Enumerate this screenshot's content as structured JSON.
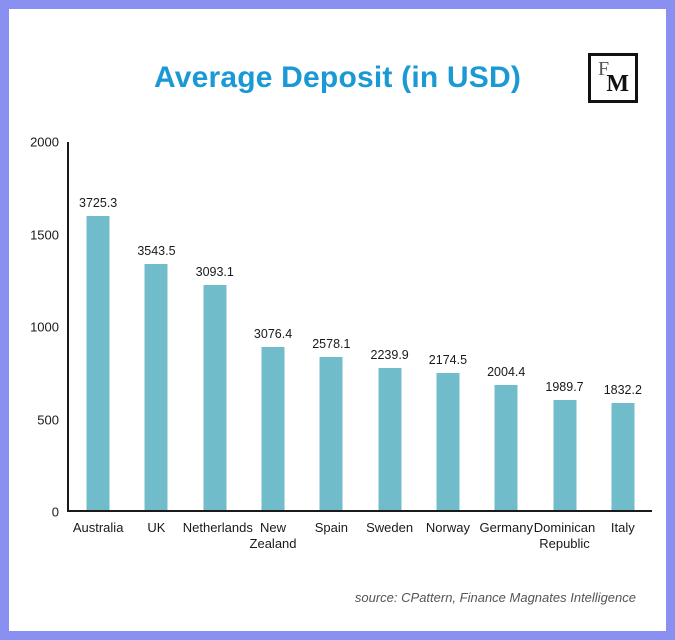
{
  "page": {
    "border_color": "#8a90f2",
    "background": "#ffffff"
  },
  "header": {
    "title": "Average Deposit (in USD)",
    "title_color": "#1a99d5",
    "logo": {
      "f": "F",
      "m": "M"
    }
  },
  "chart_data": {
    "type": "bar",
    "title": "Average Deposit (in USD)",
    "categories": [
      "Australia",
      "UK",
      "Netherlands",
      "New Zealand",
      "Spain",
      "Sweden",
      "Norway",
      "Germany",
      "Dominican Republic",
      "Italy"
    ],
    "values": [
      3725.3,
      3543.5,
      3093.1,
      3076.4,
      2578.1,
      2239.9,
      2174.5,
      2004.4,
      1989.7,
      1832.2
    ],
    "display_heights": [
      1590,
      1330,
      1215,
      880,
      825,
      770,
      740,
      675,
      595,
      580
    ],
    "xlabel": "",
    "ylabel": "",
    "ylim": [
      0,
      2000
    ],
    "yticks": [
      0,
      500,
      1000,
      1500,
      2000
    ],
    "grid": false,
    "legend": false,
    "bar_color": "#71bcca",
    "note": "value labels shown above bars are the actual data values; bar pixel heights follow display_heights on the 0-2000 axis as rendered in the source image"
  },
  "footer": {
    "source": "source: CPattern, Finance Magnates Intelligence"
  }
}
